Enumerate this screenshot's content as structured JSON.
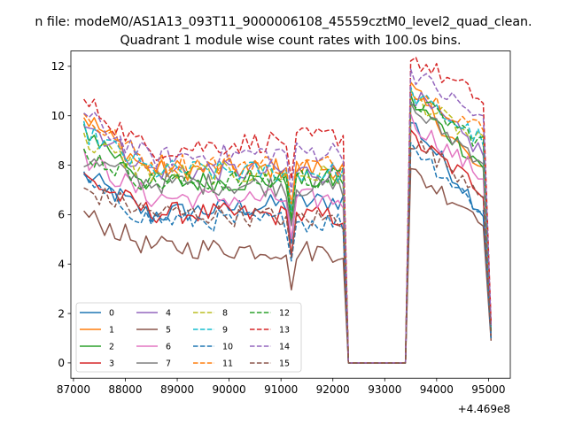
{
  "figure": {
    "suptitle": "n file: modeM0/AS1A13_093T11_9000006108_45559cztM0_level2_quad_clean.",
    "offset_label": "+4.469e8"
  },
  "chart_data": {
    "type": "line",
    "title": "Quadrant 1 module wise count rates with 100.0s bins.",
    "xlabel": "",
    "ylabel": "",
    "xlim": [
      86950,
      95420
    ],
    "ylim": [
      -0.62,
      12.62
    ],
    "x_ticks": [
      87000,
      88000,
      89000,
      90000,
      91000,
      92000,
      93000,
      94000,
      95000
    ],
    "x_tick_labels": [
      "87000",
      "88000",
      "89000",
      "90000",
      "91000",
      "92000",
      "93000",
      "94000",
      "95000"
    ],
    "y_ticks": [
      0,
      2,
      4,
      6,
      8,
      10,
      12
    ],
    "y_tick_labels": [
      "0",
      "2",
      "4",
      "6",
      "8",
      "10",
      "12"
    ],
    "grid": false,
    "legend_placement": "lower-left",
    "legend_columns": 4,
    "series": [
      {
        "name": "0",
        "color": "#1f77b4",
        "dash": "solid",
        "bases": [
          7.6,
          6.0,
          6.6,
          6.1
        ],
        "end": 1.0
      },
      {
        "name": "1",
        "color": "#ff7f0e",
        "dash": "solid",
        "bases": [
          10.0,
          7.8,
          7.9,
          7.6
        ],
        "end": 1.2
      },
      {
        "name": "2",
        "color": "#2ca02c",
        "dash": "solid",
        "bases": [
          9.5,
          7.3,
          7.4,
          8.0
        ],
        "end": 1.1
      },
      {
        "name": "3",
        "color": "#d62728",
        "dash": "solid",
        "bases": [
          7.5,
          6.1,
          5.9,
          7.0
        ],
        "end": 1.0
      },
      {
        "name": "4",
        "color": "#9467bd",
        "dash": "solid",
        "bases": [
          9.8,
          7.8,
          7.7,
          8.5
        ],
        "end": 1.3
      },
      {
        "name": "5",
        "color": "#8c564b",
        "dash": "solid",
        "bases": [
          6.0,
          4.7,
          4.5,
          5.9
        ],
        "end": 0.9
      },
      {
        "name": "6",
        "color": "#e377c2",
        "dash": "solid",
        "bases": [
          8.3,
          6.7,
          6.6,
          7.5
        ],
        "end": 1.1
      },
      {
        "name": "7",
        "color": "#7f7f7f",
        "dash": "solid",
        "bases": [
          8.2,
          7.3,
          7.1,
          8.2
        ],
        "end": 1.2
      },
      {
        "name": "8",
        "color": "#bcbd22",
        "dash": "dashed",
        "bases": [
          9.0,
          7.7,
          7.6,
          8.8
        ],
        "end": 1.3
      },
      {
        "name": "9",
        "color": "#17becf",
        "dash": "dashed",
        "bases": [
          9.4,
          7.8,
          7.7,
          9.0
        ],
        "end": 1.4
      },
      {
        "name": "10",
        "color": "#1f77b4",
        "dash": "dashed",
        "bases": [
          7.3,
          5.8,
          5.7,
          6.1
        ],
        "end": 1.0
      },
      {
        "name": "11",
        "color": "#ff7f0e",
        "dash": "dashed",
        "bases": [
          10.0,
          8.1,
          8.0,
          9.4
        ],
        "end": 1.5
      },
      {
        "name": "12",
        "color": "#2ca02c",
        "dash": "dashed",
        "bases": [
          8.5,
          7.3,
          7.5,
          8.9
        ],
        "end": 1.3
      },
      {
        "name": "13",
        "color": "#d62728",
        "dash": "dashed",
        "bases": [
          10.6,
          8.6,
          9.2,
          10.6
        ],
        "end": 1.6
      },
      {
        "name": "14",
        "color": "#9467bd",
        "dash": "dashed",
        "bases": [
          10.0,
          8.3,
          8.6,
          9.8
        ],
        "end": 1.5
      },
      {
        "name": "15",
        "color": "#8c564b",
        "dash": "dashed",
        "bases": [
          7.0,
          6.1,
          5.8,
          7.0
        ],
        "end": 1.1
      }
    ],
    "sampling": {
      "segment1_start": 87200,
      "segment1_end": 92200,
      "dip_at": 91200,
      "gap_start": 92300,
      "gap_end": 93400,
      "segment2_start": 93500,
      "segment2_end": 94900,
      "final_x": 95050
    }
  }
}
